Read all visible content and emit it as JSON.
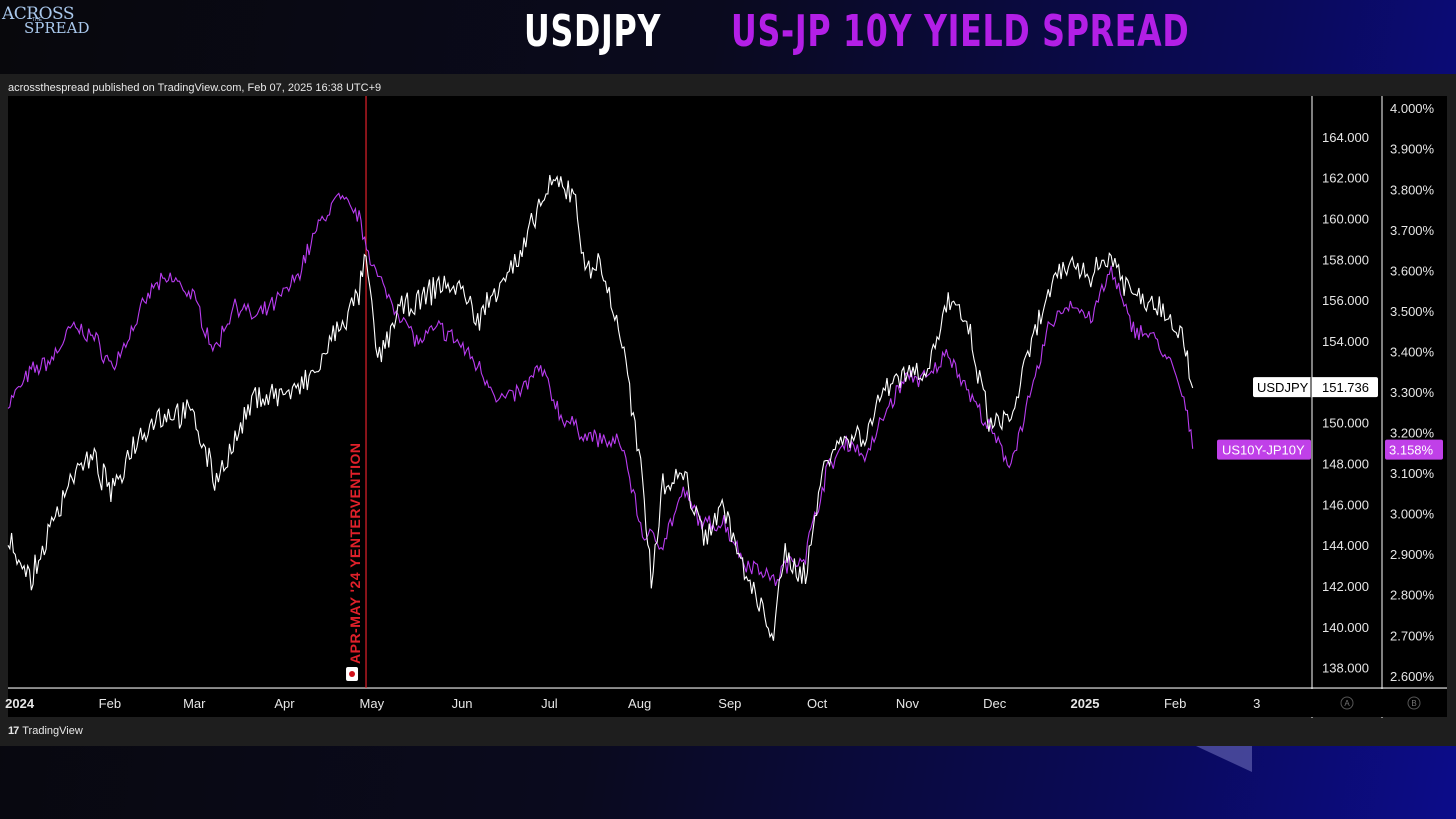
{
  "header": {
    "logo_line1": "ACROSS",
    "logo_line2": "SPREAD",
    "logo_small": "THE",
    "title_left": "USDJPY",
    "title_right": "US-JP 10Y YIELD SPREAD",
    "title_right_color": "#b31fe6"
  },
  "footer": {
    "published": "acrossthespread published on TradingView.com, Feb 07, 2025 16:38 UTC+9",
    "brand_mark": "17",
    "brand": "TradingView"
  },
  "chart_data": {
    "type": "line",
    "x_labels": [
      {
        "date": "2024-01-01",
        "label": "2024",
        "bold": true
      },
      {
        "date": "2024-02-01",
        "label": "Feb"
      },
      {
        "date": "2024-03-01",
        "label": "Mar"
      },
      {
        "date": "2024-04-01",
        "label": "Apr"
      },
      {
        "date": "2024-05-01",
        "label": "May"
      },
      {
        "date": "2024-06-01",
        "label": "Jun"
      },
      {
        "date": "2024-07-01",
        "label": "Jul"
      },
      {
        "date": "2024-08-01",
        "label": "Aug"
      },
      {
        "date": "2024-09-01",
        "label": "Sep"
      },
      {
        "date": "2024-10-01",
        "label": "Oct"
      },
      {
        "date": "2024-11-01",
        "label": "Nov"
      },
      {
        "date": "2024-12-01",
        "label": "Dec"
      },
      {
        "date": "2025-01-01",
        "label": "2025",
        "bold": true
      },
      {
        "date": "2025-02-01",
        "label": "Feb"
      },
      {
        "date": "2025-03-01",
        "label": "3"
      }
    ],
    "x_range": [
      "2023-12-28",
      "2025-03-20"
    ],
    "y_left_range": [
      137,
      166
    ],
    "y_left_ticks": [
      "138.000",
      "140.000",
      "142.000",
      "144.000",
      "146.000",
      "148.000",
      "150.000",
      "152.000",
      "154.000",
      "156.000",
      "158.000",
      "160.000",
      "162.000",
      "164.000"
    ],
    "y_right_range": [
      2.57,
      4.03
    ],
    "y_right_ticks": [
      "2.600%",
      "2.700%",
      "2.800%",
      "2.900%",
      "3.000%",
      "3.100%",
      "3.200%",
      "3.300%",
      "3.400%",
      "3.500%",
      "3.600%",
      "3.700%",
      "3.800%",
      "3.900%",
      "4.000%"
    ],
    "series": [
      {
        "name": "USDJPY",
        "axis": "left",
        "color": "#ffffff",
        "last_value": "151.736",
        "points": [
          [
            "2023-12-28",
            144.5
          ],
          [
            "2024-01-05",
            142.2
          ],
          [
            "2024-01-12",
            145.0
          ],
          [
            "2024-01-19",
            147.5
          ],
          [
            "2024-01-26",
            148.2
          ],
          [
            "2024-02-02",
            146.5
          ],
          [
            "2024-02-09",
            149.0
          ],
          [
            "2024-02-16",
            150.2
          ],
          [
            "2024-02-23",
            150.5
          ],
          [
            "2024-03-01",
            150.3
          ],
          [
            "2024-03-08",
            147.2
          ],
          [
            "2024-03-15",
            149.0
          ],
          [
            "2024-03-22",
            151.3
          ],
          [
            "2024-03-29",
            151.4
          ],
          [
            "2024-04-05",
            151.5
          ],
          [
            "2024-04-12",
            152.5
          ],
          [
            "2024-04-19",
            154.5
          ],
          [
            "2024-04-26",
            156.0
          ],
          [
            "2024-04-29",
            158.0
          ],
          [
            "2024-05-03",
            153.0
          ],
          [
            "2024-05-10",
            155.5
          ],
          [
            "2024-05-17",
            155.8
          ],
          [
            "2024-05-24",
            156.8
          ],
          [
            "2024-05-31",
            156.6
          ],
          [
            "2024-06-07",
            155.0
          ],
          [
            "2024-06-14",
            157.0
          ],
          [
            "2024-06-21",
            158.0
          ],
          [
            "2024-06-28",
            160.8
          ],
          [
            "2024-07-03",
            161.7
          ],
          [
            "2024-07-10",
            161.3
          ],
          [
            "2024-07-12",
            158.0
          ],
          [
            "2024-07-19",
            157.5
          ],
          [
            "2024-07-26",
            154.0
          ],
          [
            "2024-08-02",
            147.0
          ],
          [
            "2024-08-05",
            142.5
          ],
          [
            "2024-08-09",
            147.0
          ],
          [
            "2024-08-16",
            147.5
          ],
          [
            "2024-08-23",
            144.5
          ],
          [
            "2024-08-30",
            146.0
          ],
          [
            "2024-09-06",
            142.5
          ],
          [
            "2024-09-13",
            140.5
          ],
          [
            "2024-09-16",
            139.7
          ],
          [
            "2024-09-20",
            143.5
          ],
          [
            "2024-09-27",
            142.5
          ],
          [
            "2024-10-04",
            148.5
          ],
          [
            "2024-10-11",
            149.2
          ],
          [
            "2024-10-18",
            149.5
          ],
          [
            "2024-10-25",
            152.0
          ],
          [
            "2024-11-01",
            152.5
          ],
          [
            "2024-11-08",
            152.6
          ],
          [
            "2024-11-15",
            156.0
          ],
          [
            "2024-11-22",
            154.5
          ],
          [
            "2024-11-29",
            150.0
          ],
          [
            "2024-12-06",
            150.0
          ],
          [
            "2024-12-13",
            153.5
          ],
          [
            "2024-12-20",
            156.5
          ],
          [
            "2024-12-27",
            157.8
          ],
          [
            "2025-01-03",
            157.3
          ],
          [
            "2025-01-10",
            158.2
          ],
          [
            "2025-01-17",
            156.3
          ],
          [
            "2025-01-24",
            156.0
          ],
          [
            "2025-01-31",
            155.2
          ],
          [
            "2025-02-04",
            154.0
          ],
          [
            "2025-02-07",
            151.7
          ]
        ]
      },
      {
        "name": "US10Y-JP10Y",
        "axis": "right",
        "color": "#b93cf0",
        "last_value": "3.158%",
        "points": [
          [
            "2023-12-28",
            3.27
          ],
          [
            "2024-01-05",
            3.35
          ],
          [
            "2024-01-12",
            3.38
          ],
          [
            "2024-01-19",
            3.46
          ],
          [
            "2024-01-26",
            3.44
          ],
          [
            "2024-02-02",
            3.36
          ],
          [
            "2024-02-09",
            3.46
          ],
          [
            "2024-02-16",
            3.56
          ],
          [
            "2024-02-23",
            3.58
          ],
          [
            "2024-03-01",
            3.53
          ],
          [
            "2024-03-08",
            3.4
          ],
          [
            "2024-03-15",
            3.52
          ],
          [
            "2024-03-22",
            3.48
          ],
          [
            "2024-03-29",
            3.52
          ],
          [
            "2024-04-05",
            3.58
          ],
          [
            "2024-04-12",
            3.7
          ],
          [
            "2024-04-19",
            3.78
          ],
          [
            "2024-04-26",
            3.74
          ],
          [
            "2024-05-03",
            3.58
          ],
          [
            "2024-05-10",
            3.5
          ],
          [
            "2024-05-17",
            3.42
          ],
          [
            "2024-05-24",
            3.46
          ],
          [
            "2024-05-31",
            3.42
          ],
          [
            "2024-06-07",
            3.36
          ],
          [
            "2024-06-14",
            3.28
          ],
          [
            "2024-06-21",
            3.3
          ],
          [
            "2024-06-28",
            3.36
          ],
          [
            "2024-07-05",
            3.24
          ],
          [
            "2024-07-12",
            3.2
          ],
          [
            "2024-07-19",
            3.18
          ],
          [
            "2024-07-26",
            3.17
          ],
          [
            "2024-08-02",
            2.95
          ],
          [
            "2024-08-09",
            2.93
          ],
          [
            "2024-08-16",
            3.05
          ],
          [
            "2024-08-23",
            2.97
          ],
          [
            "2024-08-30",
            2.98
          ],
          [
            "2024-09-06",
            2.88
          ],
          [
            "2024-09-13",
            2.86
          ],
          [
            "2024-09-16",
            2.83
          ],
          [
            "2024-09-20",
            2.87
          ],
          [
            "2024-09-27",
            2.9
          ],
          [
            "2024-10-04",
            3.1
          ],
          [
            "2024-10-11",
            3.18
          ],
          [
            "2024-10-18",
            3.14
          ],
          [
            "2024-10-25",
            3.26
          ],
          [
            "2024-11-01",
            3.34
          ],
          [
            "2024-11-08",
            3.33
          ],
          [
            "2024-11-15",
            3.4
          ],
          [
            "2024-11-22",
            3.3
          ],
          [
            "2024-11-29",
            3.21
          ],
          [
            "2024-12-06",
            3.12
          ],
          [
            "2024-12-13",
            3.28
          ],
          [
            "2024-12-20",
            3.47
          ],
          [
            "2024-12-27",
            3.52
          ],
          [
            "2025-01-03",
            3.48
          ],
          [
            "2025-01-10",
            3.6
          ],
          [
            "2025-01-17",
            3.46
          ],
          [
            "2025-01-24",
            3.44
          ],
          [
            "2025-01-31",
            3.36
          ],
          [
            "2025-02-04",
            3.28
          ],
          [
            "2025-02-07",
            3.16
          ]
        ]
      }
    ],
    "annotation": {
      "date": "2024-04-29",
      "label": "APR-MAY '24 YENTERVENTION",
      "color": "#e0202a"
    },
    "scale_buttons": [
      "A",
      "B"
    ]
  }
}
